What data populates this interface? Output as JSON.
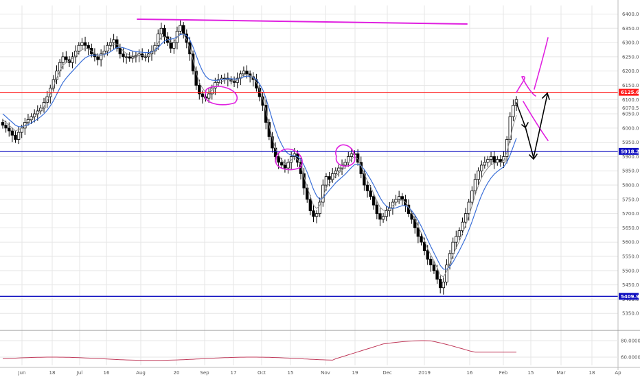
{
  "colors": {
    "red_line": "#ff1a1a",
    "blue_line": "#1010c0",
    "magenta": "#e020e0",
    "ma_fast": "#8a8a8a",
    "ma_slow": "#3a6fd8",
    "candle": "#000000",
    "indicator": "#c03a5a",
    "grid": "#e6e6e6"
  },
  "chart_data": {
    "type": "candlestick",
    "ylim": [
      5300,
      6430
    ],
    "y_ticks": [
      "6400.0",
      "6350.0",
      "6300.0",
      "6250.0",
      "6200.0",
      "6150.0",
      "6100.0",
      "6070.5",
      "6050.0",
      "6000.0",
      "5950.0",
      "5900.0",
      "5850.0",
      "5800.0",
      "5750.0",
      "5700.0",
      "5650.0",
      "5600.0",
      "5550.0",
      "5500.0",
      "5450.0",
      "5400.0",
      "5350.0"
    ],
    "x_ticks": [
      "Jun",
      "18",
      "Jul",
      "16",
      "Aug",
      "20",
      "Sep",
      "17",
      "Oct",
      "15",
      "Nov",
      "19",
      "Dec",
      "2019",
      "16",
      "Feb",
      "15",
      "Mar",
      "18",
      "Ap"
    ],
    "horizontal_levels": [
      {
        "label": "6125.6",
        "value": 6125.6,
        "color": "#ff1a1a"
      },
      {
        "label": "5918.2",
        "value": 5918.2,
        "color": "#1010c0"
      },
      {
        "label": "5409.9",
        "value": 5409.9,
        "color": "#1010c0"
      }
    ],
    "close_path": [
      6010,
      6000,
      5990,
      5975,
      5960,
      5985,
      6000,
      6020,
      6030,
      6040,
      6050,
      6060,
      6070,
      6090,
      6110,
      6140,
      6170,
      6200,
      6230,
      6250,
      6240,
      6230,
      6250,
      6270,
      6290,
      6300,
      6290,
      6280,
      6260,
      6250,
      6240,
      6260,
      6270,
      6290,
      6300,
      6310,
      6280,
      6260,
      6250,
      6250,
      6245,
      6250,
      6255,
      6260,
      6250,
      6250,
      6260,
      6270,
      6290,
      6330,
      6350,
      6320,
      6300,
      6280,
      6300,
      6340,
      6360,
      6330,
      6300,
      6260,
      6200,
      6150,
      6120,
      6110,
      6105,
      6120,
      6140,
      6160,
      6170,
      6175,
      6175,
      6170,
      6165,
      6160,
      6175,
      6190,
      6200,
      6190,
      6180,
      6170,
      6140,
      6110,
      6080,
      6020,
      5970,
      5930,
      5900,
      5880,
      5870,
      5860,
      5880,
      5900,
      5910,
      5880,
      5840,
      5790,
      5750,
      5710,
      5690,
      5700,
      5740,
      5800,
      5830,
      5820,
      5840,
      5850,
      5860,
      5870,
      5880,
      5900,
      5910,
      5910,
      5880,
      5840,
      5800,
      5780,
      5760,
      5730,
      5700,
      5680,
      5690,
      5710,
      5720,
      5740,
      5750,
      5760,
      5750,
      5730,
      5700,
      5680,
      5650,
      5620,
      5600,
      5570,
      5540,
      5520,
      5500,
      5470,
      5440,
      5460,
      5520,
      5560,
      5600,
      5620,
      5640,
      5670,
      5700,
      5740,
      5780,
      5820,
      5850,
      5870,
      5880,
      5890,
      5900,
      5880,
      5890,
      5880,
      5900,
      5960,
      6040,
      6080,
      6100
    ],
    "ma_fast": [
      6030,
      6020,
      6010,
      6000,
      5990,
      5995,
      6000,
      6010,
      6020,
      6030,
      6040,
      6050,
      6060,
      6075,
      6095,
      6120,
      6145,
      6175,
      6200,
      6220,
      6230,
      6235,
      6245,
      6255,
      6265,
      6275,
      6280,
      6278,
      6270,
      6262,
      6255,
      6255,
      6260,
      6270,
      6282,
      6295,
      6295,
      6285,
      6270,
      6262,
      6255,
      6252,
      6253,
      6256,
      6255,
      6253,
      6256,
      6262,
      6275,
      6300,
      6320,
      6320,
      6312,
      6300,
      6302,
      6318,
      6335,
      6330,
      6310,
      6280,
      6240,
      6195,
      6160,
      6140,
      6125,
      6125,
      6132,
      6145,
      6155,
      6162,
      6168,
      6170,
      6168,
      6165,
      6168,
      6178,
      6188,
      6188,
      6184,
      6176,
      6160,
      6135,
      6105,
      6060,
      6010,
      5965,
      5930,
      5905,
      5888,
      5875,
      5878,
      5888,
      5898,
      5890,
      5868,
      5830,
      5795,
      5760,
      5730,
      5718,
      5728,
      5760,
      5790,
      5805,
      5820,
      5832,
      5842,
      5852,
      5862,
      5878,
      5892,
      5900,
      5892,
      5868,
      5840,
      5815,
      5795,
      5770,
      5745,
      5722,
      5712,
      5712,
      5718,
      5728,
      5737,
      5746,
      5748,
      5740,
      5722,
      5702,
      5680,
      5655,
      5632,
      5605,
      5578,
      5555,
      5535,
      5510,
      5485,
      5478,
      5498,
      5525,
      5555,
      5580,
      5603,
      5630,
      5660,
      5692,
      5728,
      5765,
      5798,
      5825,
      5845,
      5860,
      5872,
      5876,
      5880,
      5880,
      5886,
      5915,
      5962,
      6010,
      6045
    ],
    "ma_slow": [
      6050,
      6040,
      6030,
      6020,
      6010,
      6005,
      6005,
      6008,
      6012,
      6018,
      6025,
      6032,
      6040,
      6050,
      6062,
      6078,
      6096,
      6118,
      6140,
      6160,
      6175,
      6188,
      6200,
      6212,
      6224,
      6236,
      6246,
      6252,
      6256,
      6256,
      6256,
      6256,
      6258,
      6262,
      6268,
      6276,
      6282,
      6284,
      6282,
      6278,
      6274,
      6270,
      6268,
      6267,
      6266,
      6265,
      6265,
      6267,
      6272,
      6282,
      6295,
      6305,
      6310,
      6312,
      6314,
      6320,
      6328,
      6330,
      6325,
      6310,
      6285,
      6255,
      6225,
      6200,
      6182,
      6172,
      6168,
      6167,
      6168,
      6170,
      6172,
      6173,
      6173,
      6172,
      6172,
      6175,
      6180,
      6182,
      6182,
      6178,
      6170,
      6155,
      6135,
      6105,
      6068,
      6030,
      5995,
      5965,
      5942,
      5922,
      5910,
      5905,
      5903,
      5900,
      5890,
      5870,
      5845,
      5815,
      5785,
      5762,
      5750,
      5755,
      5768,
      5782,
      5795,
      5808,
      5818,
      5828,
      5838,
      5850,
      5862,
      5872,
      5874,
      5868,
      5855,
      5838,
      5820,
      5800,
      5778,
      5756,
      5738,
      5726,
      5720,
      5718,
      5720,
      5724,
      5728,
      5728,
      5722,
      5710,
      5695,
      5676,
      5655,
      5632,
      5608,
      5585,
      5562,
      5540,
      5518,
      5505,
      5505,
      5514,
      5530,
      5550,
      5570,
      5592,
      5615,
      5642,
      5672,
      5704,
      5736,
      5764,
      5788,
      5808,
      5825,
      5838,
      5848,
      5856,
      5864,
      5880,
      5905,
      5935,
      5965
    ],
    "indicator": {
      "ylim": [
        50,
        90
      ],
      "ticks": [
        "80.0000",
        "60.0000"
      ]
    }
  }
}
